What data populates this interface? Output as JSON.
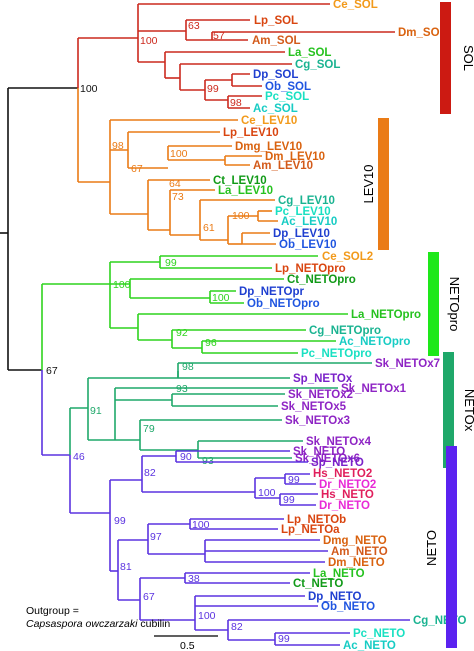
{
  "colors": {
    "root": "#111111",
    "sol": "#cc2a1e",
    "lev10": "#ea7b16",
    "netopro": "#2fd41e",
    "netox": "#1fa86a",
    "neto": "#5b33e0",
    "ce": "#f29a1b",
    "lp": "#d94510",
    "dm": "#d9620f",
    "am": "#d35a1a",
    "la": "#26c21f",
    "cg": "#1ab391",
    "dp": "#1f3fd0",
    "ob": "#1f55e0",
    "pc": "#19e0c2",
    "ac": "#17ccc4",
    "ct": "#119a18",
    "dmg": "#d9620f",
    "sk": "#8e24c4",
    "sp": "#7a22c9",
    "hs": "#e01f5c",
    "dr": "#e82ad6",
    "sol_bar": "#cc1a12",
    "lev10_bar": "#ea7b16",
    "netopro_bar": "#1ee81a",
    "netox_bar": "#1fa86a",
    "neto_bar": "#5b22f0"
  },
  "groups": {
    "sol": "SOL",
    "lev10": "LEV10",
    "netopro": "NETOpro",
    "netox": "NETOx",
    "neto": "NETO"
  },
  "outgroup": {
    "line1": "Outgroup =",
    "species": "Capsaspora owczarzaki",
    "protein": " cubilin"
  },
  "scale_label": "0.5",
  "leaves": {
    "ce_sol": "Ce_SOL",
    "lp_sol": "Lp_SOL",
    "dm_sol": "Dm_SOL",
    "am_sol": "Am_SOL",
    "la_sol": "La_SOL",
    "cg_sol": "Cg_SOL",
    "dp_sol": "Dp_SOL",
    "ob_sol": "Ob_SOL",
    "pc_sol": "Pc_SOL",
    "ac_sol": "Ac_SOL",
    "ce_lev10": "Ce_LEV10",
    "lp_lev10": "Lp_LEV10",
    "dmg_lev10": "Dmg_LEV10",
    "dm_lev10": "Dm_LEV10",
    "am_lev10": "Am_LEV10",
    "ct_lev10": "Ct_LEV10",
    "la_lev10": "La_LEV10",
    "cg_lev10": "Cg_LEV10",
    "pc_lev10": "Pc_LEV10",
    "ac_lev10": "Ac_LEV10",
    "dp_lev10": "Dp_LEV10",
    "ob_lev10": "Ob_LEV10",
    "ce_sol2": "Ce_SOL2",
    "lp_netopro": "Lp_NETOpro",
    "ct_netopro": "Ct_NETOpro",
    "dp_netopr": "Dp_NETOpr",
    "ob_netopro": "Ob_NETOpro",
    "la_netopro": "La_NETOpro",
    "cg_netopro": "Cg_NETOpro",
    "ac_netopro": "Ac_NETOpro",
    "pc_netopro": "Pc_NETOpro",
    "sk_netox7": "Sk_NETOx7",
    "sp_netox": "Sp_NETOx",
    "sk_netox1": "Sk_NETOx1",
    "sk_netox2": "Sk_NETOx2",
    "sk_netox5": "Sk_NETOx5",
    "sk_netox3": "Sk_NETOx3",
    "sk_netox4": "Sk_NETOx4",
    "sk_netox6": "Sk_NETOx6",
    "sk_neto": "Sk_NETO",
    "sp_neto": "Sp_NETO",
    "hs_neto2": "Hs_NETO2",
    "dr_neto2": "Dr_NETO2",
    "hs_neto": "Hs_NETO",
    "dr_neto": "Dr_NETO",
    "lp_netob": "Lp_NETOb",
    "lp_netoa": "Lp_NETOa",
    "dmg_neto": "Dmg_NETO",
    "am_neto": "Am_NETO",
    "dm_neto": "Dm_NETO",
    "la_neto": "La_NETO",
    "ct_neto": "Ct_NETO",
    "dp_neto": "Dp_NETO",
    "ob_neto": "Ob_NETO",
    "cg_neto": "Cg_NETO",
    "pc_neto": "Pc_NETO",
    "ac_neto": "Ac_NETO"
  },
  "support": {
    "root_split": "100",
    "neto_split": "67",
    "sol_100": "100",
    "sol_63": "63",
    "sol_57": "57",
    "sol_99": "99",
    "sol_98": "98",
    "lev_98": "98",
    "lev_100a": "100",
    "lev_67": "67",
    "lev_64": "64",
    "lev_73": "73",
    "lev_100b": "100",
    "lev_61": "61",
    "pro_99": "99",
    "pro_100a": "100",
    "pro_100b": "100",
    "pro_92": "92",
    "pro_96": "96",
    "x_98": "98",
    "x_91": "91",
    "x_93a": "93",
    "x_79": "79",
    "x_93b": "93",
    "n_46": "46",
    "n_90": "90",
    "n_82a": "82",
    "n_99a": "99",
    "n_100a": "100",
    "n_99b": "99",
    "n_100b": "100",
    "n_97": "97",
    "n_81": "81",
    "n_38": "38",
    "n_67": "67",
    "n_100c": "100",
    "n_82b": "82",
    "n_99c": "99"
  }
}
